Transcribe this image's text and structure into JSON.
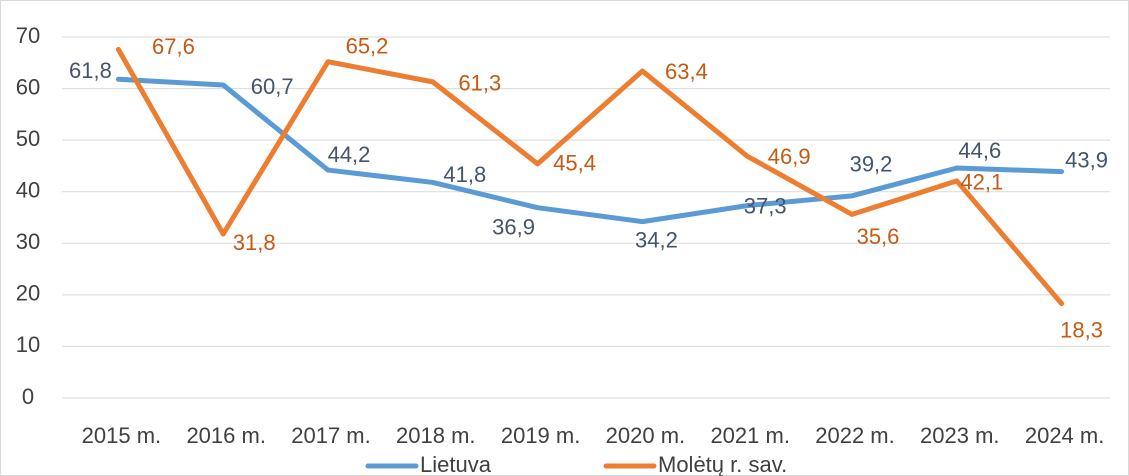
{
  "chart_data": {
    "type": "line",
    "categories": [
      "2015 m.",
      "2016 m.",
      "2017 m.",
      "2018 m.",
      "2019 m.",
      "2020 m.",
      "2021 m.",
      "2022 m.",
      "2023 m.",
      "2024 m."
    ],
    "series": [
      {
        "name": "Lietuva",
        "color": "#5b9bd5",
        "values": [
          61.8,
          60.7,
          44.2,
          41.8,
          36.9,
          34.2,
          37.3,
          39.2,
          44.6,
          43.9
        ],
        "value_labels": [
          "61,8",
          "60,7",
          "44,2",
          "41,8",
          "36,9",
          "34,2",
          "37,3",
          "39,2",
          "44,6",
          "43,9"
        ]
      },
      {
        "name": "Molėtų r. sav.",
        "color": "#ed7d31",
        "values": [
          67.6,
          31.8,
          65.2,
          61.3,
          45.4,
          63.4,
          46.9,
          35.6,
          42.1,
          18.3
        ],
        "value_labels": [
          "67,6",
          "31,8",
          "65,2",
          "61,3",
          "45,4",
          "63,4",
          "46,9",
          "35,6",
          "42,1",
          "18,3"
        ]
      }
    ],
    "ylim": [
      0,
      70
    ],
    "yticks": [
      0,
      10,
      20,
      30,
      40,
      50,
      60,
      70
    ],
    "grid": true,
    "legend": "bottom"
  }
}
